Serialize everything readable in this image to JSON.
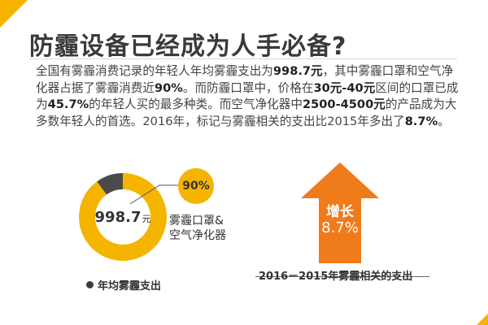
{
  "title": "防霾设备已经成为人手必备?",
  "paragraph": [
    {
      "t": "全国有雾霾消费记录的年轻人年均雾霾支出为"
    },
    {
      "t": "998.7元",
      "b": true
    },
    {
      "t": "，其中雾霾口罩和空气净化器占据了雾霾消费近"
    },
    {
      "t": "90%",
      "b": true
    },
    {
      "t": "。而防霾口罩中，价格在"
    },
    {
      "t": "30元-40元",
      "b": true
    },
    {
      "t": "区间的口罩已成为"
    },
    {
      "t": "45.7%",
      "b": true
    },
    {
      "t": "的年轻人买的最多种类。而空气净化器中"
    },
    {
      "t": "2500-4500元",
      "b": true
    },
    {
      "t": "的产品成为大多数年轻人的首选。2016年，标记与雾霾相关的支出比2015年多出了"
    },
    {
      "t": "8.7%",
      "b": true
    },
    {
      "t": "。"
    }
  ],
  "donut": {
    "value": "998.7",
    "unit": "元",
    "share_percent": 90,
    "share_label": "90%",
    "category_label_line1": "雾霾口罩&",
    "category_label_line2": "空气净化器",
    "legend_label": "年均雾霾支出",
    "color_major": "#f5b400",
    "color_minor": "#4a4a4a"
  },
  "growth": {
    "label": "增长",
    "value": "8.7%",
    "caption": "2016－2015年雾霾相关的支出",
    "arrow_color": "#f07b1a"
  },
  "icons": {
    "arrow": "up-arrow-icon",
    "legend_dot": "legend-dot-icon"
  }
}
